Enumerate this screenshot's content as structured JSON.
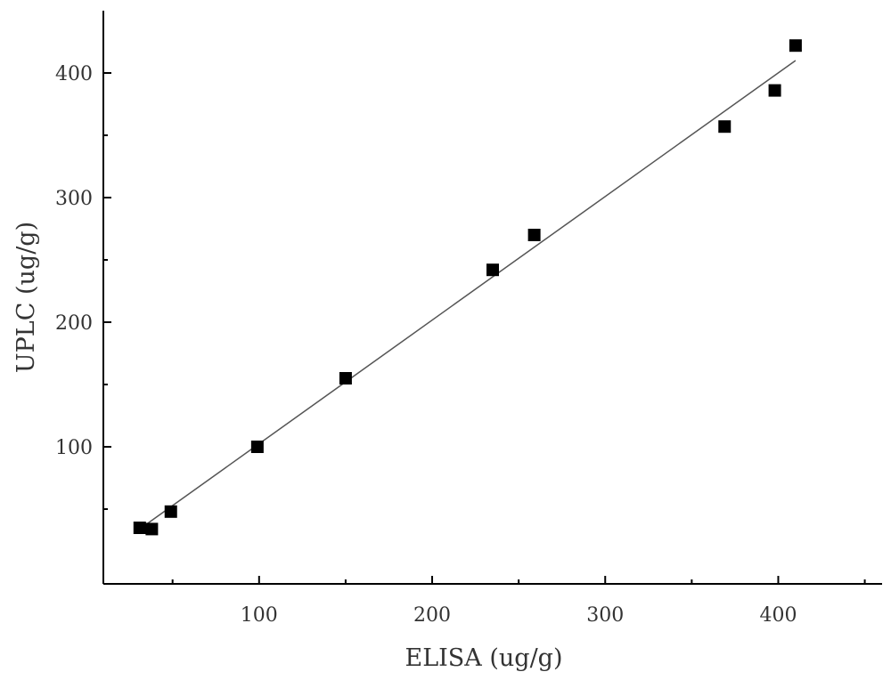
{
  "chart_data": {
    "type": "scatter",
    "title": "",
    "xlabel": "ELISA (ug/g)",
    "ylabel": "UPLC (ug/g)",
    "xlim": [
      10,
      460
    ],
    "ylim": [
      -10,
      450
    ],
    "x_ticks": [
      100,
      200,
      300,
      400
    ],
    "y_ticks": [
      100,
      200,
      300,
      400
    ],
    "x_minor_ticks": [
      50,
      150,
      250,
      350,
      450
    ],
    "y_minor_ticks": [
      50,
      150,
      250,
      350
    ],
    "grid": false,
    "legend": "none",
    "marker": "square",
    "marker_color": "#000000",
    "line_color": "#555555",
    "points": [
      {
        "x": 31,
        "y": 35
      },
      {
        "x": 38,
        "y": 34
      },
      {
        "x": 49,
        "y": 48
      },
      {
        "x": 99,
        "y": 100
      },
      {
        "x": 150,
        "y": 155
      },
      {
        "x": 235,
        "y": 242
      },
      {
        "x": 259,
        "y": 270
      },
      {
        "x": 369,
        "y": 357
      },
      {
        "x": 398,
        "y": 386
      },
      {
        "x": 410,
        "y": 422
      }
    ],
    "fit_line": {
      "x_start": 33,
      "y_start": 36,
      "x_end": 410,
      "y_end": 410
    }
  }
}
